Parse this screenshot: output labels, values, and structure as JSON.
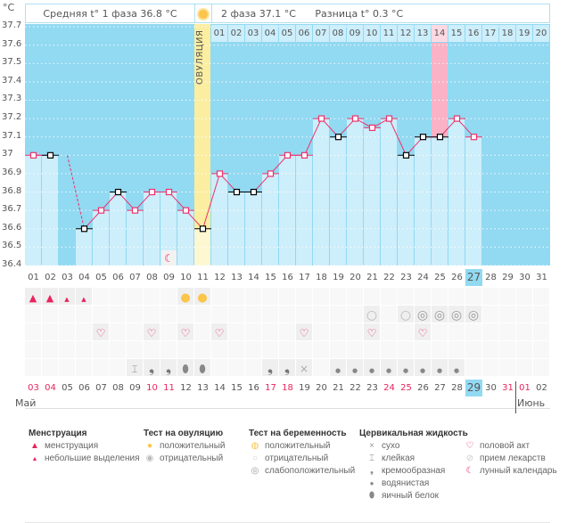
{
  "header": {
    "unit": "°C",
    "phase1_avg": "Средняя t° 1 фаза 36.8 °C",
    "phase2_avg": "2 фаза 37.1 °C",
    "difference": "Разница t° 0.3 °C",
    "ovulation_label": "ОВУЛЯЦИЯ"
  },
  "chart_data": {
    "type": "line",
    "ylabel": "°C",
    "ylim": [
      36.4,
      37.7
    ],
    "yticks": [
      "37.7",
      "37.6",
      "37.5",
      "37.4",
      "37.3",
      "37.2",
      "37.1",
      "37",
      "36.9",
      "36.8",
      "36.7",
      "36.6",
      "36.5",
      "36.4"
    ],
    "grid": true,
    "x_cycle_days": [
      "01",
      "02",
      "03",
      "04",
      "05",
      "06",
      "07",
      "08",
      "09",
      "10",
      "11",
      "12",
      "13",
      "14",
      "15",
      "16",
      "17",
      "18",
      "19",
      "20",
      "21",
      "22",
      "23",
      "24",
      "25",
      "26",
      "27",
      "28",
      "29",
      "30",
      "31"
    ],
    "current_day": "27",
    "temperatures": [
      37.0,
      37.0,
      null,
      36.6,
      36.7,
      36.8,
      36.7,
      36.8,
      36.8,
      36.7,
      36.6,
      36.9,
      36.8,
      36.8,
      36.9,
      37.0,
      37.0,
      37.2,
      37.1,
      37.2,
      37.15,
      37.2,
      37.0,
      37.1,
      37.1,
      37.2,
      37.1
    ],
    "excluded_points_days": [
      2,
      4,
      6,
      11,
      13,
      14,
      19,
      23,
      24,
      25
    ],
    "ovulation_day": 11,
    "phase2_day_labels": [
      "01",
      "02",
      "03",
      "04",
      "05",
      "06",
      "07",
      "08",
      "09",
      "10",
      "11",
      "12",
      "13",
      "14",
      "15",
      "16",
      "17",
      "18",
      "19",
      "20"
    ],
    "highlight_phase2_day": 14,
    "moon_day": 9
  },
  "colors": {
    "sky": "#92d9f2",
    "bar": "#cdeefb",
    "ovulation": "#fbeea0",
    "pink": "#f9b2c6",
    "line": "#f0306a"
  },
  "calendar": {
    "dates": [
      "03",
      "04",
      "05",
      "06",
      "07",
      "08",
      "09",
      "10",
      "11",
      "12",
      "13",
      "14",
      "15",
      "16",
      "17",
      "18",
      "19",
      "20",
      "21",
      "22",
      "23",
      "24",
      "25",
      "26",
      "27",
      "28",
      "29",
      "30",
      "31",
      "01",
      "02"
    ],
    "weekend_indexes": [
      0,
      1,
      7,
      8,
      14,
      15,
      21,
      22,
      28,
      29
    ],
    "today_index": 26,
    "month_may": "Май",
    "month_june": "Июнь"
  },
  "events": {
    "menstruation_heavy": [
      1,
      2
    ],
    "menstruation_light": [
      3,
      4
    ],
    "ovulation_positive": [
      10,
      11
    ],
    "pregnancy_negative": [
      21,
      23
    ],
    "pregnancy_faint": [
      24,
      25,
      26,
      27
    ],
    "intercourse": [
      5,
      8,
      10,
      12,
      17,
      21,
      24
    ],
    "cm_sticky": [
      7
    ],
    "cm_creamy": [
      8,
      9,
      15,
      16
    ],
    "cm_eggwhite": [
      10,
      11
    ],
    "cm_dry": [
      17
    ],
    "cm_watery": [
      19,
      20,
      21,
      22,
      23,
      24,
      25,
      26
    ]
  },
  "legend": {
    "menstruation": {
      "title": "Менструация",
      "items": [
        "менструация",
        "небольшие выделения"
      ]
    },
    "ovulation_test": {
      "title": "Тест на овуляцию",
      "items": [
        "положительный",
        "отрицательный"
      ]
    },
    "pregnancy_test": {
      "title": "Тест на беременность",
      "items": [
        "положительный",
        "отрицательный",
        "слабоположительный"
      ]
    },
    "cervical": {
      "title": "Цервикальная жидкость",
      "items": [
        "сухо",
        "клейкая",
        "кремообразная",
        "водянистая",
        "яичный белок"
      ]
    },
    "other": {
      "items": [
        "половой акт",
        "прием лекарств",
        "лунный календарь"
      ]
    }
  }
}
